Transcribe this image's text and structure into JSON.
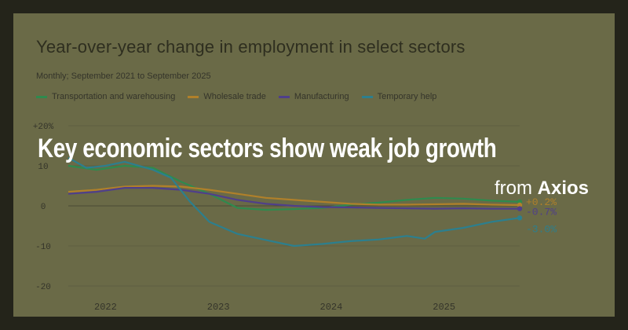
{
  "overlay": {
    "headline": "Key economic sectors show weak job growth",
    "source_prefix": "from ",
    "source_name": "Axios"
  },
  "colors": {
    "transport": "#2f8a4e",
    "wholesale": "#b0802a",
    "manufacturing": "#4f3f8a",
    "temp": "#2c7f8e"
  },
  "chart_data": {
    "type": "line",
    "title": "Year-over-year change in employment in select sectors",
    "subtitle": "Monthly; September 2021 to September 2025",
    "ylim": [
      -20,
      20
    ],
    "yticks": [
      20,
      10,
      0,
      -10,
      -20
    ],
    "ytick_labels": [
      "+20%",
      "10",
      "0",
      "-10",
      "-20"
    ],
    "xlim": [
      2021.67,
      2025.67
    ],
    "xticks": [
      2022,
      2023,
      2024,
      2025
    ],
    "xtick_labels": [
      "2022",
      "2023",
      "2024",
      "2025"
    ],
    "grid": "horizontal",
    "legend": "top-left",
    "series": [
      {
        "name": "Transportation and warehousing",
        "color": "#2f8a4e",
        "end_label": "",
        "points": [
          [
            2021.67,
            10
          ],
          [
            2021.92,
            9
          ],
          [
            2022.17,
            10
          ],
          [
            2022.42,
            9.5
          ],
          [
            2022.67,
            6
          ],
          [
            2022.92,
            3
          ],
          [
            2023.17,
            -0.5
          ],
          [
            2023.42,
            -1
          ],
          [
            2023.67,
            -0.8
          ],
          [
            2023.92,
            -0.5
          ],
          [
            2024.17,
            0.3
          ],
          [
            2024.42,
            0.8
          ],
          [
            2024.67,
            1.5
          ],
          [
            2024.92,
            2
          ],
          [
            2025.17,
            1.8
          ],
          [
            2025.42,
            1.3
          ],
          [
            2025.67,
            1
          ]
        ]
      },
      {
        "name": "Wholesale trade",
        "color": "#b0802a",
        "end_label": "+0.2%",
        "points": [
          [
            2021.67,
            3.5
          ],
          [
            2021.92,
            4
          ],
          [
            2022.17,
            4.8
          ],
          [
            2022.42,
            5
          ],
          [
            2022.67,
            4.8
          ],
          [
            2022.92,
            4
          ],
          [
            2023.17,
            3
          ],
          [
            2023.42,
            2
          ],
          [
            2023.67,
            1.5
          ],
          [
            2023.92,
            1
          ],
          [
            2024.17,
            0.5
          ],
          [
            2024.42,
            0.3
          ],
          [
            2024.67,
            0.3
          ],
          [
            2024.92,
            0.4
          ],
          [
            2025.17,
            0.5
          ],
          [
            2025.42,
            0.3
          ],
          [
            2025.67,
            0.2
          ]
        ]
      },
      {
        "name": "Manufacturing",
        "color": "#4f3f8a",
        "end_label": "-0.7%",
        "points": [
          [
            2021.67,
            3
          ],
          [
            2021.92,
            3.5
          ],
          [
            2022.17,
            4.5
          ],
          [
            2022.42,
            4.5
          ],
          [
            2022.67,
            4
          ],
          [
            2022.92,
            3
          ],
          [
            2023.17,
            1.5
          ],
          [
            2023.42,
            0.5
          ],
          [
            2023.67,
            0
          ],
          [
            2023.92,
            -0.3
          ],
          [
            2024.17,
            -0.4
          ],
          [
            2024.42,
            -0.5
          ],
          [
            2024.67,
            -0.6
          ],
          [
            2024.92,
            -0.7
          ],
          [
            2025.17,
            -0.6
          ],
          [
            2025.42,
            -0.7
          ],
          [
            2025.67,
            -0.7
          ]
        ]
      },
      {
        "name": "Temporary help",
        "color": "#2c7f8e",
        "end_label": "-3.0%",
        "points": [
          [
            2021.67,
            12
          ],
          [
            2021.83,
            9.5
          ],
          [
            2022.0,
            10
          ],
          [
            2022.17,
            11
          ],
          [
            2022.42,
            9
          ],
          [
            2022.58,
            7
          ],
          [
            2022.75,
            1
          ],
          [
            2022.92,
            -4
          ],
          [
            2023.17,
            -7
          ],
          [
            2023.42,
            -8.5
          ],
          [
            2023.67,
            -10
          ],
          [
            2023.92,
            -9.5
          ],
          [
            2024.17,
            -8.8
          ],
          [
            2024.42,
            -8.4
          ],
          [
            2024.67,
            -7.5
          ],
          [
            2024.83,
            -8.2
          ],
          [
            2024.92,
            -6.5
          ],
          [
            2025.17,
            -5.5
          ],
          [
            2025.42,
            -4
          ],
          [
            2025.67,
            -3
          ]
        ]
      }
    ]
  }
}
